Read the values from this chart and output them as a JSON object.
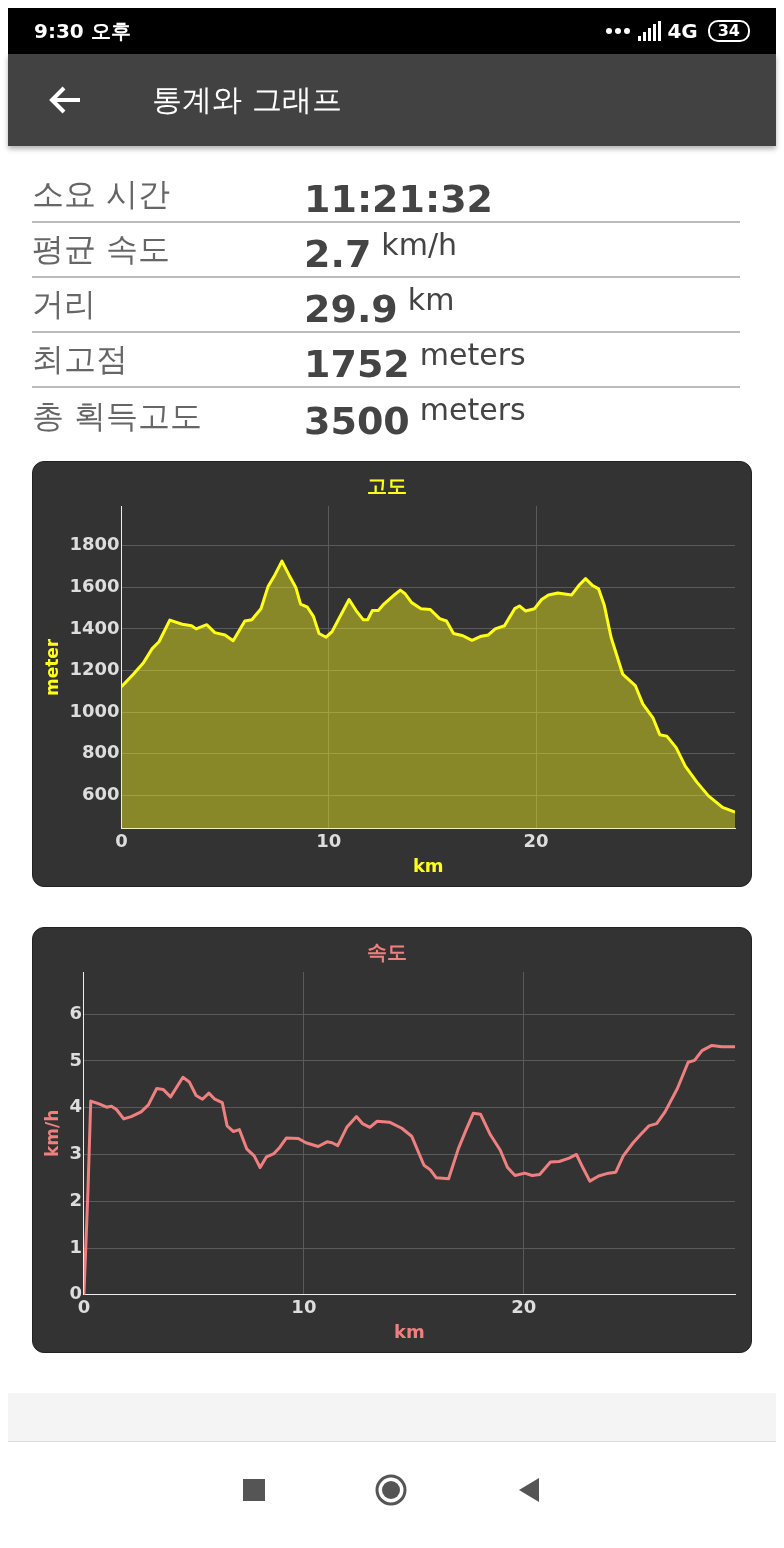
{
  "chart_data": [
    {
      "type": "other",
      "title": "통계와 그래프",
      "annotations": [
        "9:30 오후",
        "4G",
        "34",
        "소요 시간",
        "11:21:32",
        "평균 속도",
        "2.7 km/h",
        "거리",
        "29.9 km",
        "최고점",
        "1752 meters",
        "총 획득고도",
        "3500 meters"
      ]
    },
    {
      "type": "area",
      "title": "고도",
      "xlabel": "km",
      "ylabel": "meter",
      "xlim": [
        0,
        29.6
      ],
      "xticks": [
        0,
        10,
        20
      ],
      "ylim": [
        440,
        1990
      ],
      "yticks": [
        600,
        800,
        1000,
        1200,
        1400,
        1600,
        1800
      ],
      "grid": true,
      "legend": false,
      "marker": "none",
      "series": [
        {
          "color": "#ffff1a",
          "x": [
            0,
            0.58,
            1.07,
            1.48,
            1.81,
            2.33,
            2.93,
            3.38,
            3.6,
            4.12,
            4.5,
            4.99,
            5.39,
            5.95,
            6.29,
            6.73,
            7.07,
            7.4,
            7.74,
            8.08,
            8.41,
            8.64,
            8.97,
            9.26,
            9.53,
            9.87,
            10.16,
            10.43,
            10.98,
            11.32,
            11.66,
            11.88,
            12.1,
            12.39,
            12.66,
            13.11,
            13.45,
            13.67,
            14.0,
            14.45,
            14.9,
            15.35,
            15.68,
            16.02,
            16.47,
            16.91,
            17.36,
            17.7,
            18.03,
            18.48,
            18.97,
            19.2,
            19.49,
            19.93,
            20.27,
            20.6,
            21.05,
            21.72,
            22.06,
            22.39,
            22.73,
            23.02,
            23.29,
            23.62,
            24.18,
            24.79,
            25.15,
            25.64,
            25.97,
            26.31,
            26.76,
            27.2,
            27.76,
            28.32,
            29.0,
            29.6
          ],
          "values": [
            1122,
            1183,
            1239,
            1305,
            1338,
            1442,
            1422,
            1415,
            1400,
            1420,
            1382,
            1371,
            1343,
            1438,
            1444,
            1497,
            1603,
            1659,
            1725,
            1659,
            1599,
            1519,
            1504,
            1460,
            1378,
            1360,
            1387,
            1438,
            1541,
            1488,
            1444,
            1444,
            1488,
            1488,
            1519,
            1559,
            1586,
            1570,
            1526,
            1497,
            1493,
            1449,
            1438,
            1378,
            1367,
            1345,
            1365,
            1371,
            1400,
            1415,
            1497,
            1510,
            1486,
            1497,
            1541,
            1563,
            1572,
            1563,
            1608,
            1641,
            1608,
            1592,
            1515,
            1360,
            1183,
            1128,
            1040,
            973,
            892,
            885,
            830,
            741,
            664,
            598,
            543,
            520
          ]
        }
      ]
    },
    {
      "type": "line",
      "title": "속도",
      "xlabel": "km",
      "ylabel": "km/h",
      "xlim": [
        0,
        29.6
      ],
      "xticks": [
        0,
        10,
        20
      ],
      "ylim": [
        0,
        6.9
      ],
      "yticks": [
        0,
        1,
        2,
        3,
        4,
        5,
        6
      ],
      "grid": true,
      "legend": false,
      "marker": "none",
      "series": [
        {
          "color": "#f08080",
          "x": [
            0,
            0.18,
            0.31,
            0.69,
            1.03,
            1.25,
            1.48,
            1.81,
            2.15,
            2.6,
            2.93,
            3.31,
            3.6,
            3.94,
            4.5,
            4.79,
            5.1,
            5.39,
            5.68,
            5.95,
            6.29,
            6.51,
            6.8,
            7.07,
            7.4,
            7.74,
            8.01,
            8.3,
            8.64,
            8.9,
            9.2,
            9.75,
            10.09,
            10.65,
            11.05,
            11.28,
            11.54,
            11.95,
            12.39,
            12.66,
            13.0,
            13.33,
            13.89,
            14.45,
            14.9,
            15.46,
            15.75,
            16.02,
            16.58,
            17.02,
            17.36,
            17.7,
            18.03,
            18.48,
            18.93,
            19.26,
            19.6,
            20.04,
            20.38,
            20.72,
            21.21,
            21.61,
            22.06,
            22.39,
            22.68,
            23.0,
            23.4,
            23.85,
            24.18,
            24.52,
            24.97,
            25.3,
            25.68,
            26.04,
            26.42,
            26.98,
            27.47,
            27.76,
            28.1,
            28.55,
            29.0,
            29.6
          ],
          "values": [
            0,
            2.18,
            4.14,
            4.08,
            4.01,
            4.03,
            3.96,
            3.76,
            3.81,
            3.91,
            4.06,
            4.41,
            4.39,
            4.23,
            4.65,
            4.55,
            4.26,
            4.18,
            4.31,
            4.18,
            4.11,
            3.61,
            3.49,
            3.53,
            3.12,
            2.97,
            2.72,
            2.95,
            3.02,
            3.15,
            3.35,
            3.34,
            3.25,
            3.17,
            3.27,
            3.25,
            3.19,
            3.58,
            3.81,
            3.66,
            3.58,
            3.71,
            3.69,
            3.56,
            3.39,
            2.77,
            2.67,
            2.5,
            2.48,
            3.12,
            3.51,
            3.88,
            3.86,
            3.42,
            3.09,
            2.72,
            2.55,
            2.6,
            2.55,
            2.57,
            2.84,
            2.85,
            2.92,
            3.0,
            2.72,
            2.43,
            2.54,
            2.6,
            2.62,
            2.97,
            3.25,
            3.42,
            3.61,
            3.66,
            3.91,
            4.41,
            4.97,
            5.01,
            5.22,
            5.33,
            5.3,
            5.3
          ]
        }
      ]
    }
  ]
}
